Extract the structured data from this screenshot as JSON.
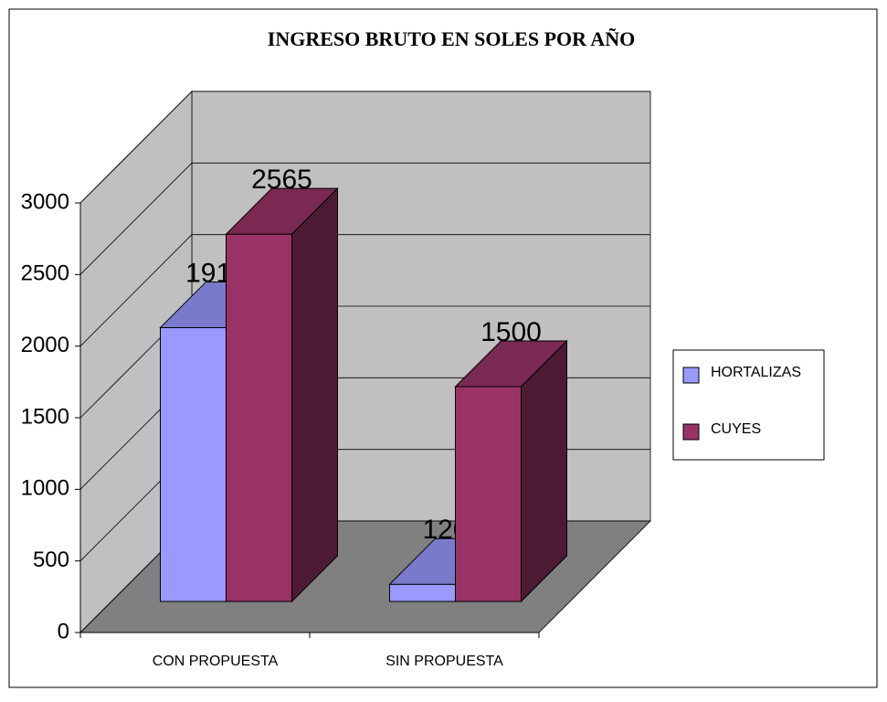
{
  "chart_data": {
    "type": "bar3d",
    "title": "INGRESO BRUTO EN SOLES POR AÑO",
    "categories": [
      "CON PROPUESTA",
      "SIN PROPUESTA"
    ],
    "series": [
      {
        "name": "HORTALIZAS",
        "color": "#9999ff",
        "values": [
          1912,
          120
        ]
      },
      {
        "name": "CUYES",
        "color": "#993366",
        "values": [
          2565,
          1500
        ]
      }
    ],
    "ylim": [
      0,
      3000
    ],
    "yticks": [
      0,
      500,
      1000,
      1500,
      2000,
      2500,
      3000
    ],
    "grid": true,
    "legend": "right"
  }
}
